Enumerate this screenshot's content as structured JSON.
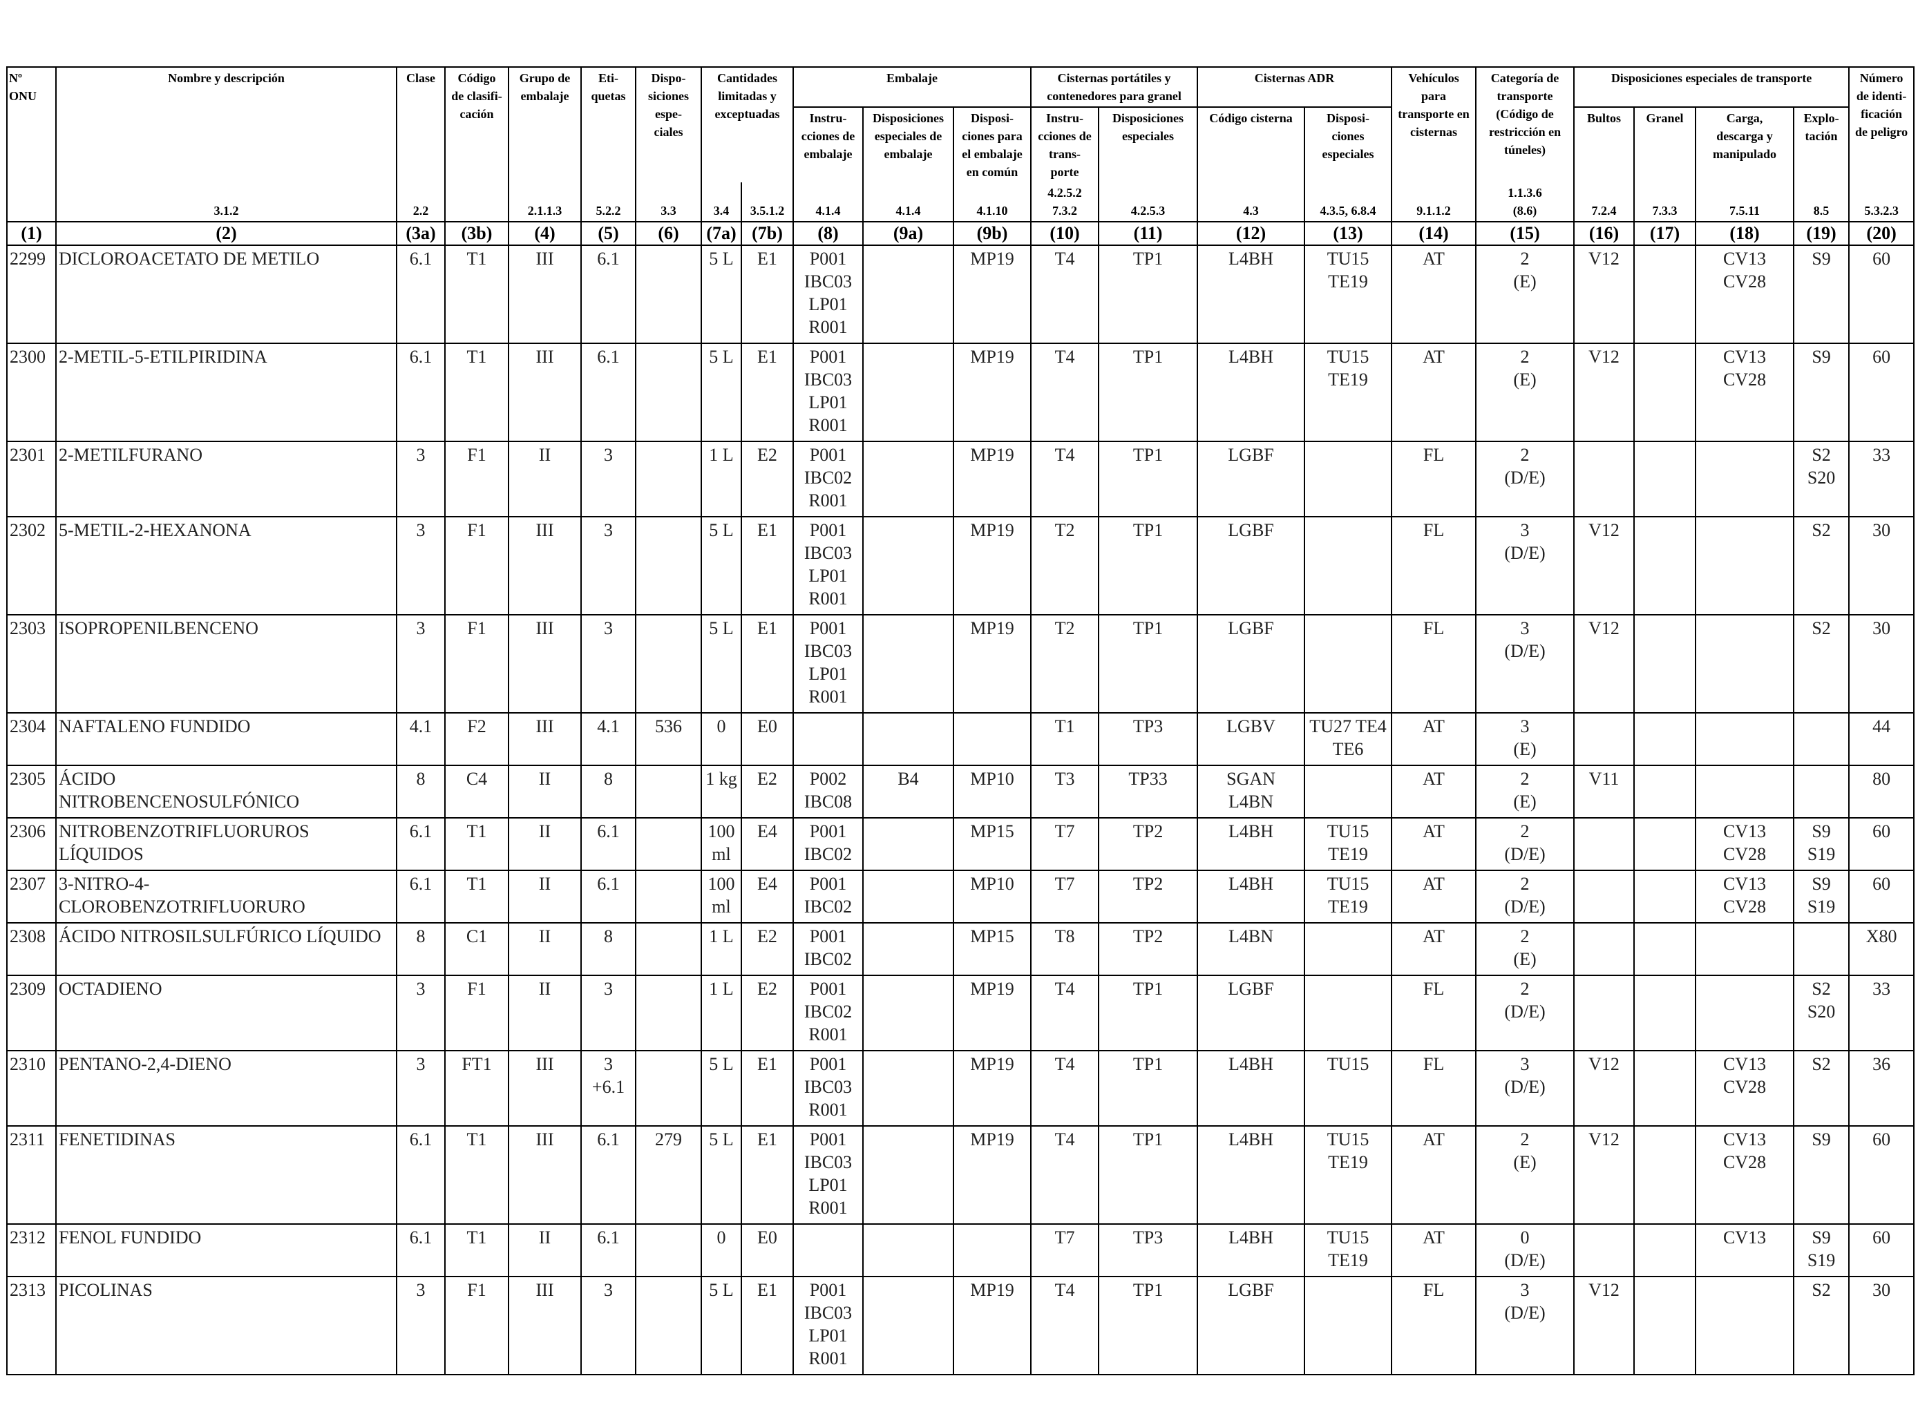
{
  "header": {
    "top": [
      "Nº\nONU",
      "Nombre y descripción",
      "Clase",
      "Código\nde clasifi-\ncación",
      "Grupo de\nembalaje",
      "Eti-\nquetas",
      "Dispo-\nsiciones\nespe-\nciales",
      "Cantidades\nlimitadas y\nexceptuadas",
      "Embalaje",
      "Cisternas portátiles y\ncontenedores para granel",
      "Cisternas ADR",
      "Vehículos\npara\ntransporte en\ncisternas",
      "Categoría de\ntransporte\n(Código de\nrestricción en\ntúneles)",
      "Disposiciones especiales de transporte",
      "Número\nde identi-\nficación\nde peligro"
    ],
    "sub": [
      "Instru-\ncciones de\nembalaje",
      "Disposiciones\nespeciales de\nembalaje",
      "Disposi-\nciones para\nel embalaje\nen común",
      "Instru-\ncciones de\ntrans-\nporte",
      "Disposiciones\nespeciales",
      "Código cisterna",
      "Disposi-\nciones\nespeciales",
      "Bultos",
      "Granel",
      "Carga,\ndescarga y\nmanipulado",
      "Explo-\ntación"
    ],
    "refs": [
      "3.1.2",
      "2.2",
      "2.1.1.3",
      "5.2.2",
      "3.3",
      "3.4",
      "3.5.1.2",
      "4.1.4",
      "4.1.4",
      "4.1.10",
      "4.2.5.2\n7.3.2",
      "4.2.5.3",
      "4.3",
      "4.3.5, 6.8.4",
      "9.1.1.2",
      "1.1.3.6\n(8.6)",
      "7.2.4",
      "7.3.3",
      "7.5.11",
      "8.5",
      "5.3.2.3"
    ],
    "column_numbers": [
      "(1)",
      "(2)",
      "(3a)",
      "(3b)",
      "(4)",
      "(5)",
      "(6)",
      "(7a)",
      "(7b)",
      "(8)",
      "(9a)",
      "(9b)",
      "(10)",
      "(11)",
      "(12)",
      "(13)",
      "(14)",
      "(15)",
      "(16)",
      "(17)",
      "(18)",
      "(19)",
      "(20)"
    ]
  },
  "rows": [
    [
      "2299",
      "DICLOROACETATO DE METILO",
      "6.1",
      "T1",
      "III",
      "6.1",
      null,
      "5 L",
      "E1",
      "P001\nIBC03\nLP01\nR001",
      null,
      "MP19",
      "T4",
      "TP1",
      "L4BH",
      "TU15\nTE19",
      "AT",
      "2\n(E)",
      "V12",
      null,
      "CV13\nCV28",
      "S9",
      "60"
    ],
    [
      "2300",
      "2-METIL-5-ETILPIRIDINA",
      "6.1",
      "T1",
      "III",
      "6.1",
      null,
      "5 L",
      "E1",
      "P001\nIBC03\nLP01\nR001",
      null,
      "MP19",
      "T4",
      "TP1",
      "L4BH",
      "TU15\nTE19",
      "AT",
      "2\n(E)",
      "V12",
      null,
      "CV13\nCV28",
      "S9",
      "60"
    ],
    [
      "2301",
      "2-METILFURANO",
      "3",
      "F1",
      "II",
      "3",
      null,
      "1 L",
      "E2",
      "P001\nIBC02\nR001",
      null,
      "MP19",
      "T4",
      "TP1",
      "LGBF",
      null,
      "FL",
      "2\n(D/E)",
      null,
      null,
      null,
      "S2\nS20",
      "33"
    ],
    [
      "2302",
      "5-METIL-2-HEXANONA",
      "3",
      "F1",
      "III",
      "3",
      null,
      "5 L",
      "E1",
      "P001\nIBC03\nLP01\nR001",
      null,
      "MP19",
      "T2",
      "TP1",
      "LGBF",
      null,
      "FL",
      "3\n(D/E)",
      "V12",
      null,
      null,
      "S2",
      "30"
    ],
    [
      "2303",
      "ISOPROPENILBENCENO",
      "3",
      "F1",
      "III",
      "3",
      null,
      "5 L",
      "E1",
      "P001\nIBC03\nLP01\nR001",
      null,
      "MP19",
      "T2",
      "TP1",
      "LGBF",
      null,
      "FL",
      "3\n(D/E)",
      "V12",
      null,
      null,
      "S2",
      "30"
    ],
    [
      "2304",
      "NAFTALENO FUNDIDO",
      "4.1",
      "F2",
      "III",
      "4.1",
      "536",
      "0",
      "E0",
      null,
      null,
      null,
      "T1",
      "TP3",
      "LGBV",
      "TU27 TE4\nTE6",
      "AT",
      "3\n(E)",
      null,
      null,
      null,
      null,
      "44"
    ],
    [
      "2305",
      "ÁCIDO\nNITROBENCENOSULFÓNICO",
      "8",
      "C4",
      "II",
      "8",
      null,
      "1 kg",
      "E2",
      "P002\nIBC08",
      "B4",
      "MP10",
      "T3",
      "TP33",
      "SGAN\nL4BN",
      null,
      "AT",
      "2\n(E)",
      "V11",
      null,
      null,
      null,
      "80"
    ],
    [
      "2306",
      "NITROBENZOTRIFLUORUROS\nLÍQUIDOS",
      "6.1",
      "T1",
      "II",
      "6.1",
      null,
      "100\nml",
      "E4",
      "P001\nIBC02",
      null,
      "MP15",
      "T7",
      "TP2",
      "L4BH",
      "TU15\nTE19",
      "AT",
      "2\n(D/E)",
      null,
      null,
      "CV13\nCV28",
      "S9\nS19",
      "60"
    ],
    [
      "2307",
      "3-NITRO-4-\nCLOROBENZOTRIFLUORURO",
      "6.1",
      "T1",
      "II",
      "6.1",
      null,
      "100\nml",
      "E4",
      "P001\nIBC02",
      null,
      "MP10",
      "T7",
      "TP2",
      "L4BH",
      "TU15\nTE19",
      "AT",
      "2\n(D/E)",
      null,
      null,
      "CV13\nCV28",
      "S9\nS19",
      "60"
    ],
    [
      "2308",
      "ÁCIDO NITROSILSULFÚRICO LÍQUIDO",
      "8",
      "C1",
      "II",
      "8",
      null,
      "1 L",
      "E2",
      "P001\nIBC02",
      null,
      "MP15",
      "T8",
      "TP2",
      "L4BN",
      null,
      "AT",
      "2\n(E)",
      null,
      null,
      null,
      null,
      "X80"
    ],
    [
      "2309",
      "OCTADIENO",
      "3",
      "F1",
      "II",
      "3",
      null,
      "1 L",
      "E2",
      "P001\nIBC02\nR001",
      null,
      "MP19",
      "T4",
      "TP1",
      "LGBF",
      null,
      "FL",
      "2\n(D/E)",
      null,
      null,
      null,
      "S2\nS20",
      "33"
    ],
    [
      "2310",
      "PENTANO-2,4-DIENO",
      "3",
      "FT1",
      "III",
      "3\n+6.1",
      null,
      "5 L",
      "E1",
      "P001\nIBC03\nR001",
      null,
      "MP19",
      "T4",
      "TP1",
      "L4BH",
      "TU15",
      "FL",
      "3\n(D/E)",
      "V12",
      null,
      "CV13\nCV28",
      "S2",
      "36"
    ],
    [
      "2311",
      "FENETIDINAS",
      "6.1",
      "T1",
      "III",
      "6.1",
      "279",
      "5 L",
      "E1",
      "P001\nIBC03\nLP01\nR001",
      null,
      "MP19",
      "T4",
      "TP1",
      "L4BH",
      "TU15\nTE19",
      "AT",
      "2\n(E)",
      "V12",
      null,
      "CV13\nCV28",
      "S9",
      "60"
    ],
    [
      "2312",
      "FENOL FUNDIDO",
      "6.1",
      "T1",
      "II",
      "6.1",
      null,
      "0",
      "E0",
      null,
      null,
      null,
      "T7",
      "TP3",
      "L4BH",
      "TU15\nTE19",
      "AT",
      "0\n(D/E)",
      null,
      null,
      "CV13",
      "S9\nS19",
      "60"
    ],
    [
      "2313",
      "PICOLINAS",
      "3",
      "F1",
      "III",
      "3",
      null,
      "5 L",
      "E1",
      "P001\nIBC03\nLP01\nR001",
      null,
      "MP19",
      "T4",
      "TP1",
      "LGBF",
      null,
      "FL",
      "3\n(D/E)",
      "V12",
      null,
      null,
      "S2",
      "30"
    ]
  ]
}
